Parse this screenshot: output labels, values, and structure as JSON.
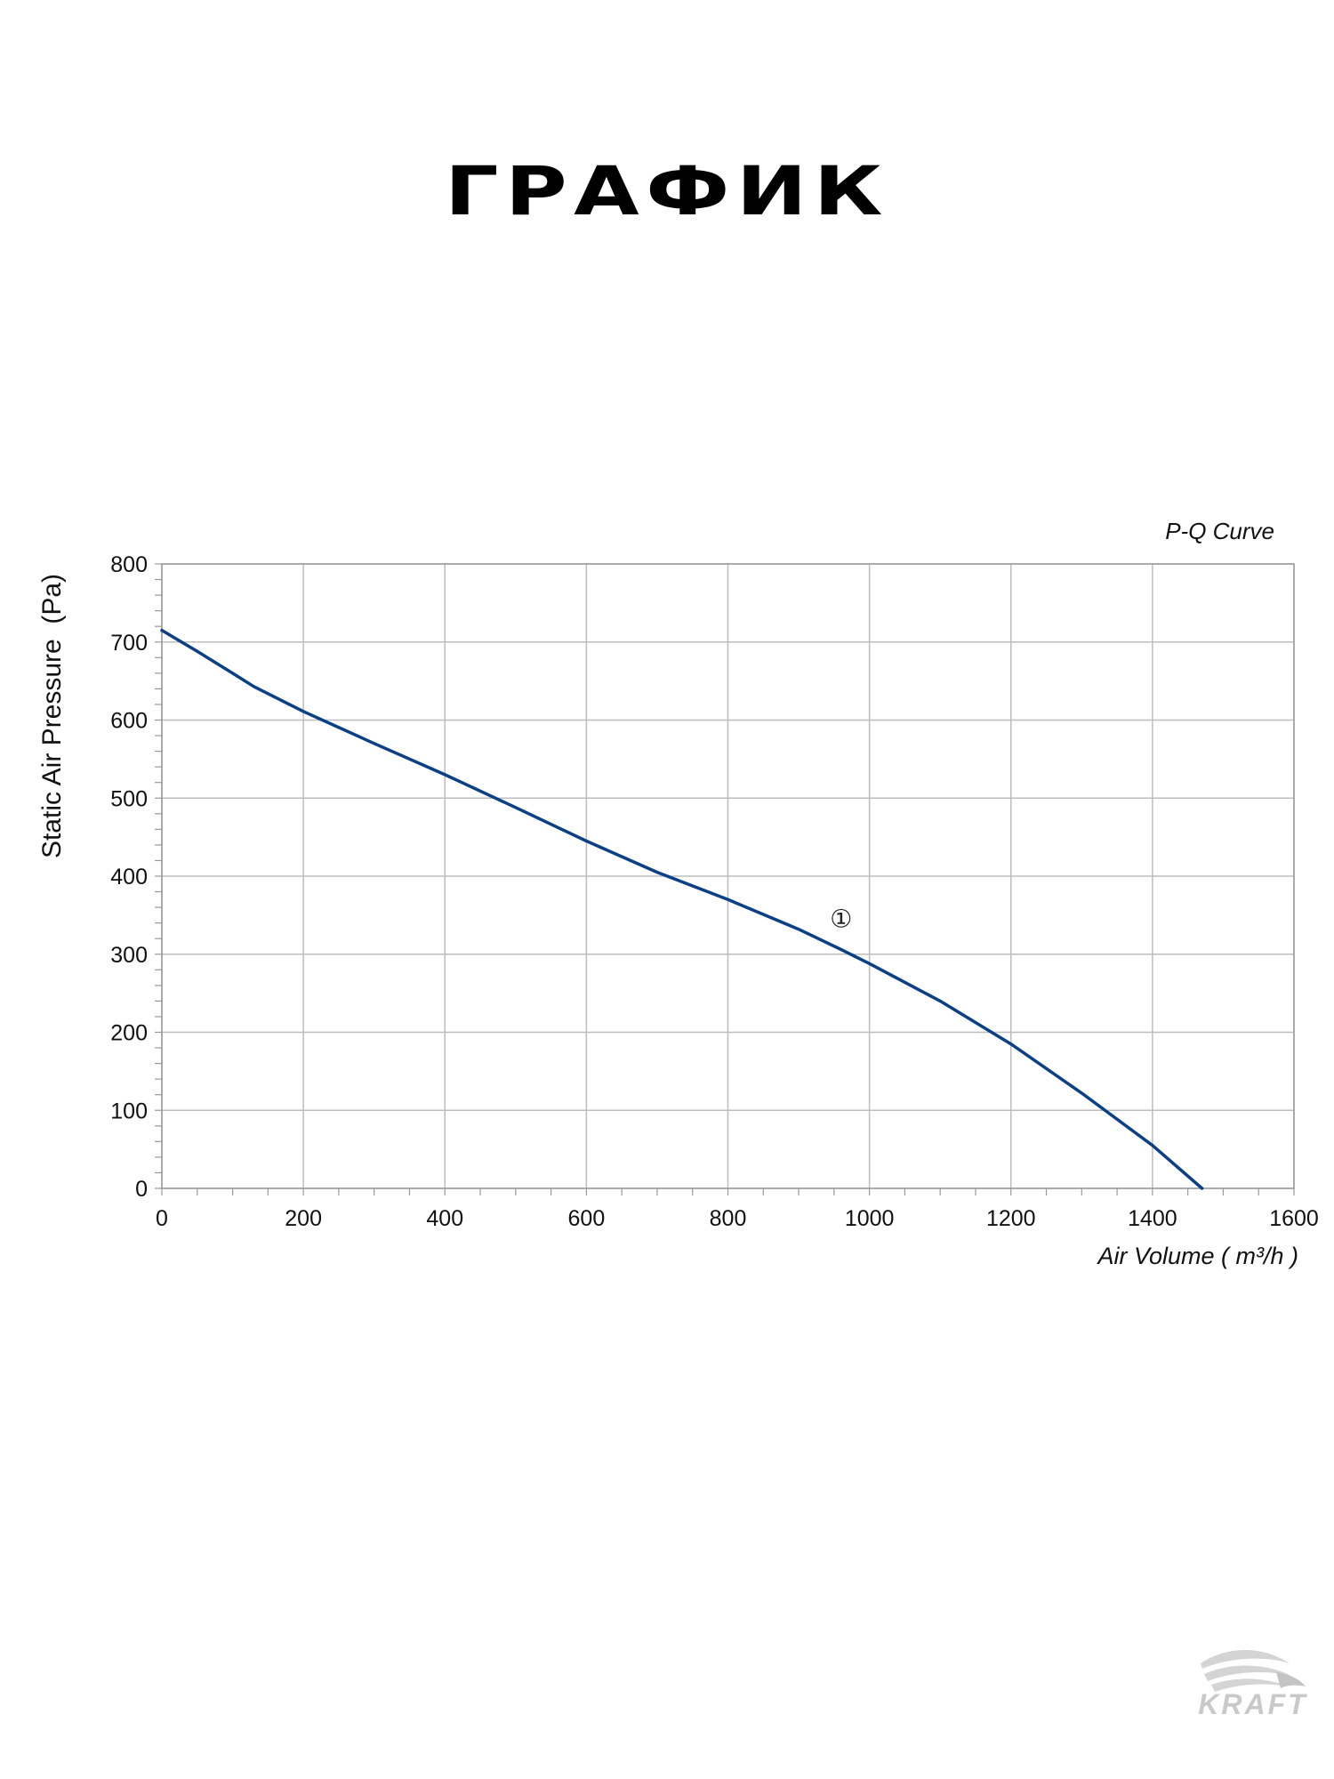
{
  "page": {
    "heading": "ГРАФИК",
    "brand": "KRAFT"
  },
  "colors": {
    "curve": "#0b3f86",
    "grid": "#bdbdbd",
    "frame": "#9a9a9a",
    "text": "#111111",
    "logo": "#cfcfcf"
  },
  "chart_data": {
    "type": "line",
    "title": "P-Q Curve",
    "xlabel": "Air Volume ( m³/h )",
    "ylabel": "Static Air Pressure  (Pa)",
    "xlim": [
      0,
      1600
    ],
    "ylim": [
      0,
      800
    ],
    "xticks": [
      "0",
      "200",
      "400",
      "600",
      "800",
      "1000",
      "1200",
      "1400",
      "1600"
    ],
    "yticks": [
      "0",
      "100",
      "200",
      "300",
      "400",
      "500",
      "600",
      "700",
      "800"
    ],
    "grid": true,
    "series": [
      {
        "marker_label": "①",
        "marker_at": {
          "x": 960,
          "y": 346
        },
        "x": [
          0,
          50,
          100,
          130,
          200,
          300,
          400,
          500,
          600,
          700,
          800,
          900,
          960,
          1000,
          1100,
          1200,
          1300,
          1400,
          1470
        ],
        "y": [
          715,
          688,
          660,
          643,
          611,
          570,
          530,
          488,
          445,
          405,
          370,
          332,
          306,
          288,
          240,
          185,
          122,
          55,
          0
        ]
      }
    ]
  }
}
